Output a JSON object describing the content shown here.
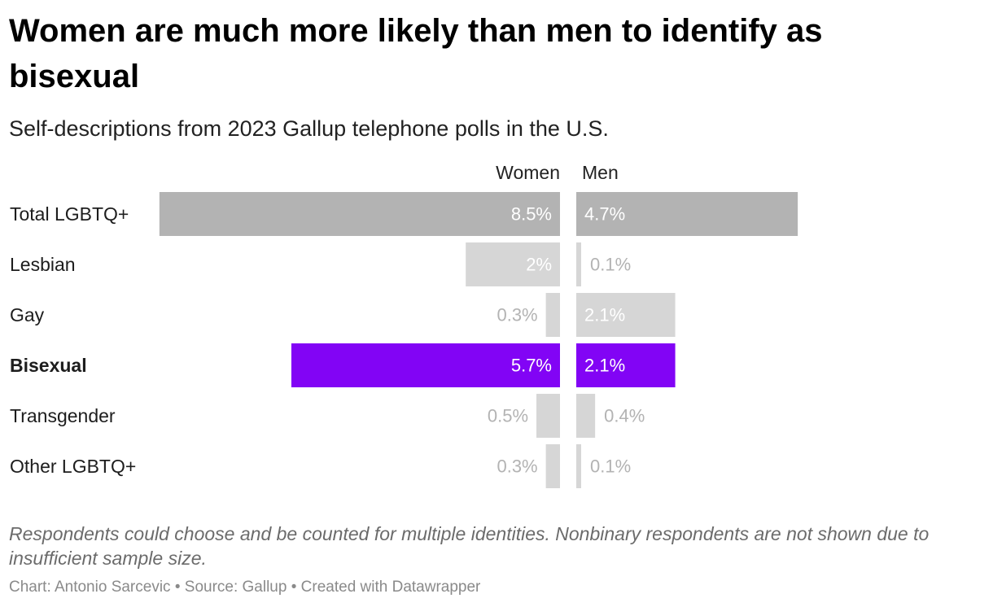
{
  "title": "Women are much more likely than men to identify as bisexual",
  "subtitle": "Self-descriptions from 2023 Gallup telephone polls in the U.S.",
  "notes": "Respondents could choose and be counted for multiple identities. Nonbinary respondents are not shown due to insufficient sample size.",
  "credits": {
    "chart_by": "Chart: Antonio Sarcevic",
    "source": "Source: Gallup",
    "tool": "Created with Datawrapper",
    "separator": " • "
  },
  "colors": {
    "total": "#b3b3b3",
    "default": "#d6d6d6",
    "highlight": "#8204f5",
    "label_inside": "#ffffff",
    "label_outside": "#b3b3b3"
  },
  "chart_data": {
    "type": "bar",
    "layout": "butterfly",
    "series": [
      {
        "name": "Women",
        "values": [
          8.5,
          2,
          0.3,
          5.7,
          0.5,
          0.3
        ],
        "labels": [
          "8.5%",
          "2%",
          "0.3%",
          "5.7%",
          "0.5%",
          "0.3%"
        ]
      },
      {
        "name": "Men",
        "values": [
          4.7,
          0.1,
          2.1,
          2.1,
          0.4,
          0.1
        ],
        "labels": [
          "4.7%",
          "0.1%",
          "2.1%",
          "2.1%",
          "0.4%",
          "0.1%"
        ]
      }
    ],
    "categories": [
      "Total LGBTQ+",
      "Lesbian",
      "Gay",
      "Bisexual",
      "Transgender",
      "Other LGBTQ+"
    ],
    "highlight_category": "Bisexual",
    "total_category": "Total LGBTQ+",
    "xlim": [
      0,
      8.5
    ],
    "unit": "%"
  }
}
